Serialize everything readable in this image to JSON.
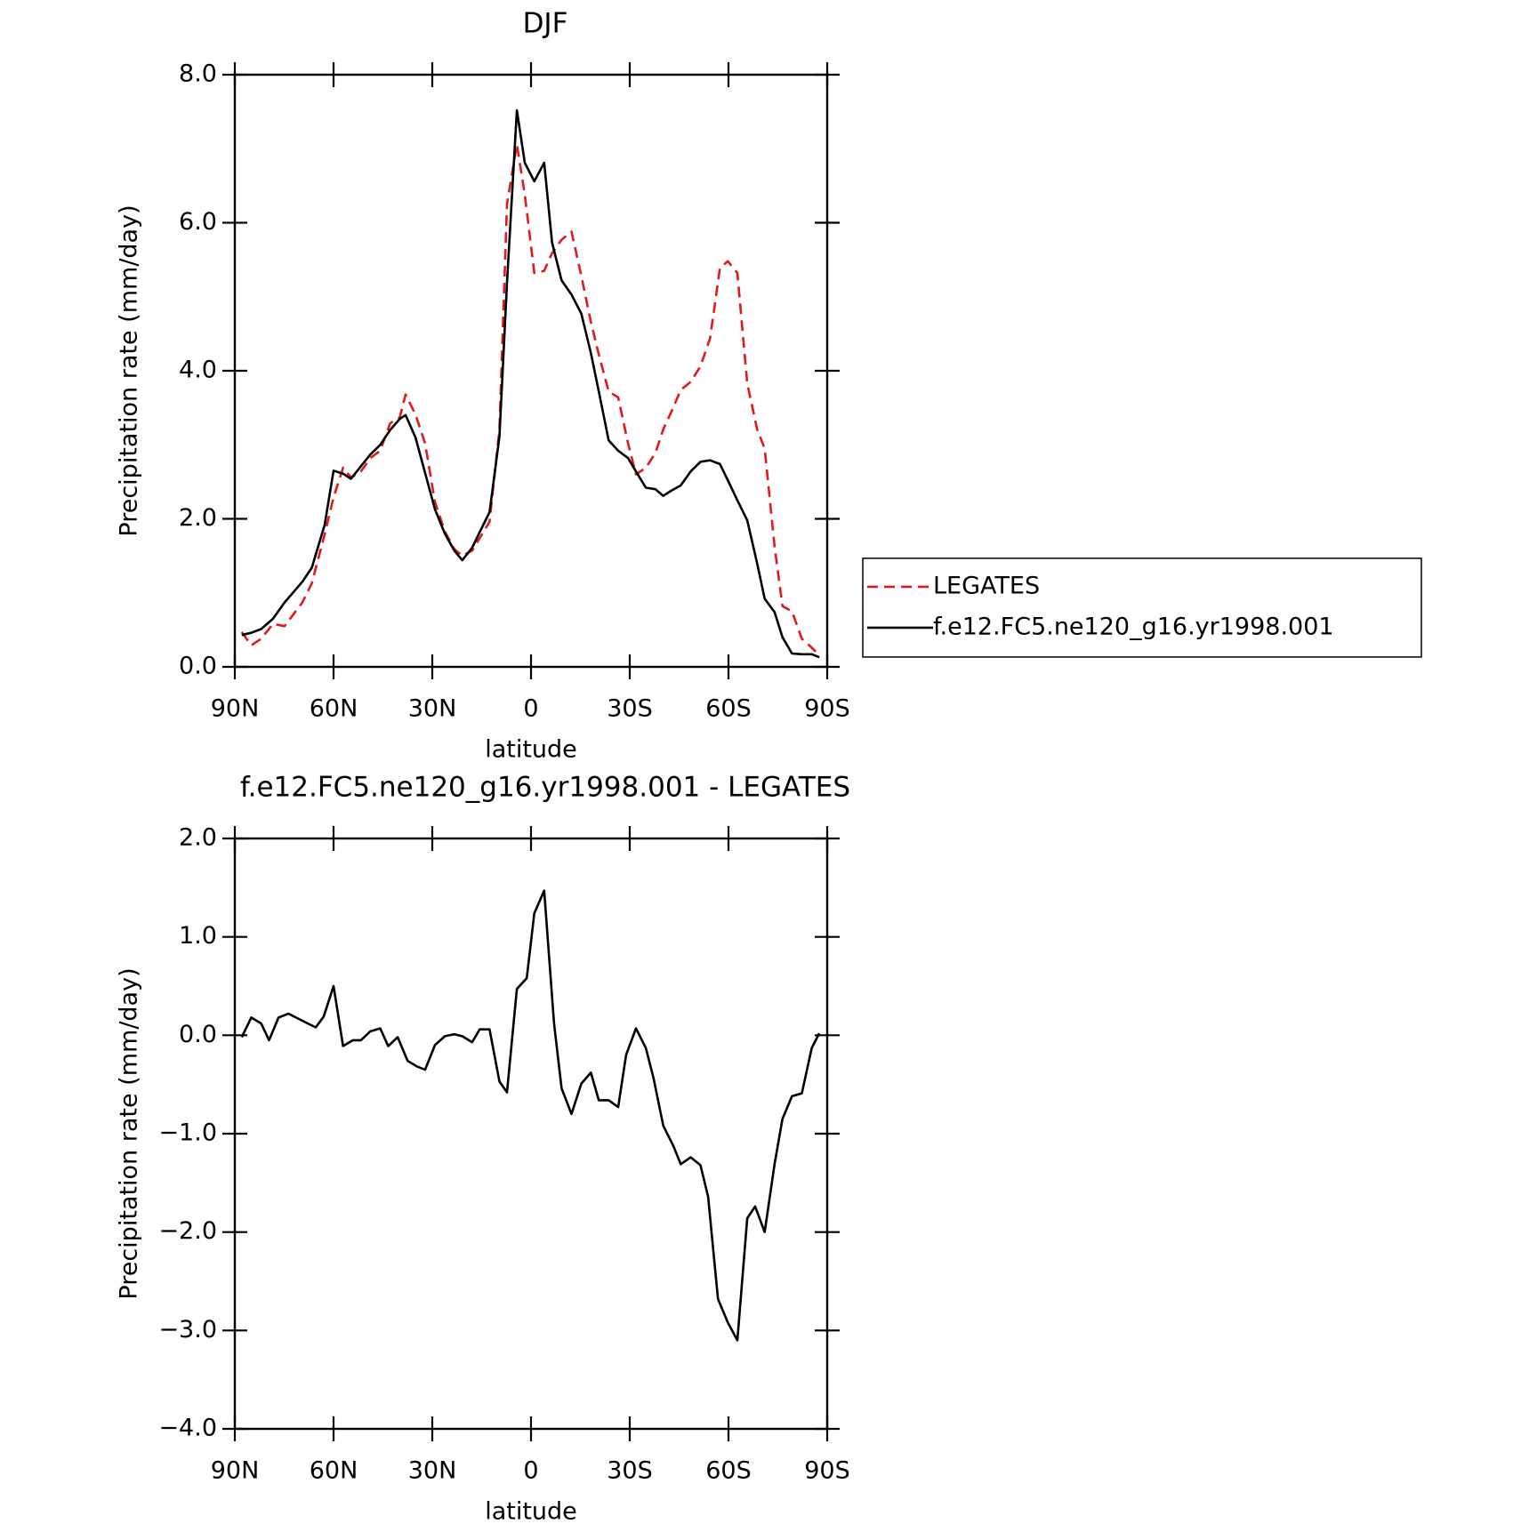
{
  "chart_data": [
    {
      "type": "line",
      "title": "DJF",
      "xlabel": "latitude",
      "ylabel": "Precipitation rate (mm/day)",
      "xlim": [
        90,
        -90
      ],
      "xticks": [
        {
          "value": 90,
          "label": "90N"
        },
        {
          "value": 60,
          "label": "60N"
        },
        {
          "value": 30,
          "label": "30N"
        },
        0,
        {
          "value": -30,
          "label": "30S"
        },
        {
          "value": -60,
          "label": "60S"
        },
        {
          "value": -90,
          "label": "90S"
        }
      ],
      "ylim": [
        0,
        8
      ],
      "yticks": [
        {
          "value": 0,
          "label": "0.0"
        },
        {
          "value": 2,
          "label": "2.0"
        },
        {
          "value": 4,
          "label": "4.0"
        },
        {
          "value": 6,
          "label": "6.0"
        },
        {
          "value": 8,
          "label": "8.0"
        }
      ],
      "legend": "right",
      "x": [
        87.9,
        85.0,
        82.0,
        78.4,
        74.9,
        69.5,
        66.6,
        62.7,
        60.0,
        57.1,
        54.7,
        51.7,
        48.8,
        45.8,
        42.8,
        39.9,
        38.1,
        35.1,
        32.2,
        29.2,
        26.2,
        23.3,
        20.9,
        17.9,
        15.6,
        12.6,
        9.6,
        7.3,
        4.3,
        1.9,
        -1.0,
        -4.0,
        -6.4,
        -9.3,
        -12.3,
        -15.3,
        -18.2,
        -20.6,
        -23.6,
        -26.5,
        -29.5,
        -31.9,
        -34.9,
        -37.8,
        -40.2,
        -42.6,
        -45.5,
        -48.5,
        -51.5,
        -54.4,
        -57.4,
        -59.8,
        -62.7,
        -65.7,
        -68.7,
        -71.0,
        -74.0,
        -76.4,
        -79.3,
        -82.3,
        -85.3,
        -87.6
      ],
      "series": [
        {
          "name": "LEGATES",
          "color": "#e0191b",
          "dashed": true,
          "values": [
            0.47,
            0.29,
            0.38,
            0.58,
            0.55,
            0.87,
            1.13,
            1.79,
            2.29,
            2.69,
            2.56,
            2.64,
            2.82,
            2.92,
            3.29,
            3.37,
            3.68,
            3.41,
            3.02,
            2.23,
            1.83,
            1.59,
            1.5,
            1.57,
            1.74,
            1.96,
            3.21,
            6.25,
            7.06,
            6.38,
            5.32,
            5.35,
            5.59,
            5.77,
            5.88,
            5.28,
            4.66,
            4.22,
            3.72,
            3.64,
            3.02,
            2.6,
            2.69,
            2.89,
            3.21,
            3.44,
            3.74,
            3.85,
            4.06,
            4.44,
            5.39,
            5.48,
            5.32,
            3.83,
            3.21,
            2.95,
            1.63,
            0.82,
            0.75,
            0.38,
            0.26,
            0.16
          ]
        },
        {
          "name": "f.e12.FC5.ne120_g16.yr1998.001",
          "color": "#000000",
          "dashed": false,
          "values": [
            0.43,
            0.46,
            0.51,
            0.65,
            0.87,
            1.15,
            1.34,
            1.92,
            2.65,
            2.61,
            2.54,
            2.71,
            2.87,
            3.0,
            3.2,
            3.35,
            3.4,
            3.1,
            2.62,
            2.13,
            1.8,
            1.57,
            1.44,
            1.61,
            1.82,
            2.09,
            3.11,
            5.19,
            7.52,
            6.81,
            6.56,
            6.81,
            5.73,
            5.22,
            5.03,
            4.77,
            4.24,
            3.72,
            3.06,
            2.92,
            2.82,
            2.64,
            2.42,
            2.4,
            2.31,
            2.38,
            2.45,
            2.64,
            2.77,
            2.79,
            2.74,
            2.52,
            2.25,
            1.98,
            1.4,
            0.92,
            0.74,
            0.4,
            0.18,
            0.17,
            0.17,
            0.13
          ]
        }
      ]
    },
    {
      "type": "line",
      "title": "f.e12.FC5.ne120_g16.yr1998.001 - LEGATES",
      "xlabel": "latitude",
      "ylabel": "Precipitation rate (mm/day)",
      "xlim": [
        90,
        -90
      ],
      "xticks": [
        {
          "value": 90,
          "label": "90N"
        },
        {
          "value": 60,
          "label": "60N"
        },
        {
          "value": 30,
          "label": "30N"
        },
        0,
        {
          "value": -30,
          "label": "30S"
        },
        {
          "value": -60,
          "label": "60S"
        },
        {
          "value": -90,
          "label": "90S"
        }
      ],
      "ylim": [
        -4,
        2
      ],
      "yticks": [
        {
          "value": -4,
          "label": "−4.0"
        },
        {
          "value": -3,
          "label": "−3.0"
        },
        {
          "value": -2,
          "label": "−2.0"
        },
        {
          "value": -1,
          "label": "−1.0"
        },
        {
          "value": 0,
          "label": "0.0"
        },
        {
          "value": 1,
          "label": "1.0"
        },
        {
          "value": 2,
          "label": "2.0"
        }
      ],
      "x": [
        87.9,
        85.0,
        82.0,
        79.6,
        76.7,
        73.7,
        70.8,
        67.8,
        65.4,
        63.0,
        60.0,
        57.1,
        54.1,
        51.7,
        48.8,
        45.8,
        43.4,
        40.5,
        37.5,
        34.5,
        32.2,
        29.2,
        26.2,
        23.3,
        20.9,
        17.9,
        15.6,
        12.6,
        9.6,
        7.3,
        4.3,
        1.3,
        -1.0,
        -4.0,
        -7.0,
        -9.3,
        -12.3,
        -15.3,
        -18.2,
        -20.6,
        -23.6,
        -26.5,
        -28.9,
        -31.9,
        -34.9,
        -37.2,
        -40.2,
        -43.2,
        -45.5,
        -48.5,
        -51.5,
        -53.8,
        -56.8,
        -59.8,
        -62.7,
        -65.7,
        -68.1,
        -71.0,
        -74.0,
        -76.4,
        -79.3,
        -82.3,
        -85.3,
        -87.6
      ],
      "color": "#000000",
      "values": [
        -0.02,
        0.18,
        0.12,
        -0.05,
        0.18,
        0.22,
        0.17,
        0.12,
        0.08,
        0.19,
        0.5,
        -0.11,
        -0.05,
        -0.05,
        0.04,
        0.07,
        -0.11,
        -0.02,
        -0.26,
        -0.32,
        -0.35,
        -0.1,
        -0.01,
        0.01,
        -0.01,
        -0.07,
        0.06,
        0.06,
        -0.47,
        -0.58,
        0.47,
        0.58,
        1.24,
        1.47,
        0.12,
        -0.54,
        -0.8,
        -0.49,
        -0.38,
        -0.66,
        -0.66,
        -0.73,
        -0.2,
        0.07,
        -0.13,
        -0.43,
        -0.92,
        -1.12,
        -1.31,
        -1.24,
        -1.32,
        -1.64,
        -2.68,
        -2.92,
        -3.1,
        -1.86,
        -1.74,
        -2.0,
        -1.31,
        -0.85,
        -0.62,
        -0.59,
        -0.13,
        0.02
      ]
    }
  ]
}
